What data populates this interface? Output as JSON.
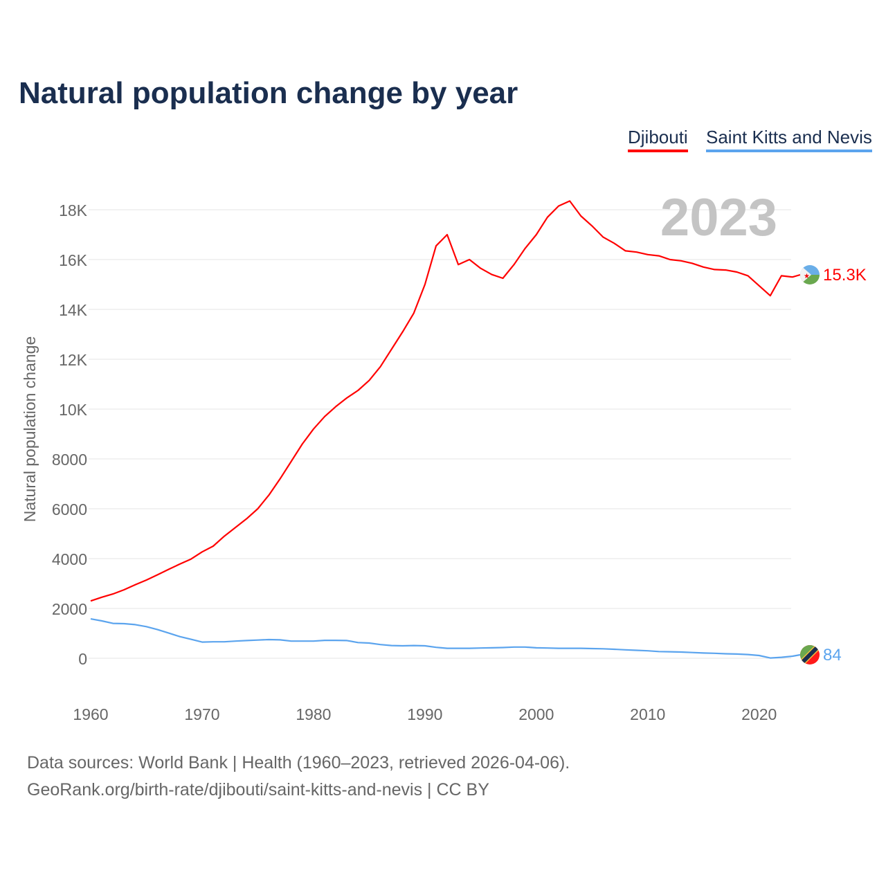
{
  "title": "Natural population change by year",
  "year_label": "2023",
  "footer": {
    "line1": "Data sources: World Bank | Health (1960–2023, retrieved 2026-04-06).",
    "line2": "GeoRank.org/birth-rate/djibouti/saint-kitts-and-nevis | CC BY"
  },
  "chart_data": {
    "type": "line",
    "title": "Natural population change by year",
    "xlabel": "",
    "ylabel": "Natural population change",
    "xlim": [
      1960,
      2023
    ],
    "ylim": [
      0,
      18000
    ],
    "x_ticks": [
      "1960",
      "1970",
      "1980",
      "1990",
      "2000",
      "2010",
      "2020"
    ],
    "y_ticks": [
      "0",
      "2000",
      "4000",
      "6000",
      "8000",
      "10K",
      "12K",
      "14K",
      "16K",
      "18K"
    ],
    "legend_position": "top-right",
    "grid": true,
    "x": [
      1960,
      1961,
      1962,
      1963,
      1964,
      1965,
      1966,
      1967,
      1968,
      1969,
      1970,
      1971,
      1972,
      1973,
      1974,
      1975,
      1976,
      1977,
      1978,
      1979,
      1980,
      1981,
      1982,
      1983,
      1984,
      1985,
      1986,
      1987,
      1988,
      1989,
      1990,
      1991,
      1992,
      1993,
      1994,
      1995,
      1996,
      1997,
      1998,
      1999,
      2000,
      2001,
      2002,
      2003,
      2004,
      2005,
      2006,
      2007,
      2008,
      2009,
      2010,
      2011,
      2012,
      2013,
      2014,
      2015,
      2016,
      2017,
      2018,
      2019,
      2020,
      2021,
      2022,
      2023
    ],
    "series": [
      {
        "name": "Djibouti",
        "color": "#ff0000",
        "end_label": "15.3K",
        "values": [
          2300,
          2450,
          2580,
          2750,
          2950,
          3140,
          3350,
          3570,
          3780,
          3980,
          4270,
          4500,
          4900,
          5250,
          5600,
          6000,
          6550,
          7200,
          7900,
          8600,
          9200,
          9700,
          10100,
          10450,
          10750,
          11150,
          11700,
          12400,
          13100,
          13850,
          15000,
          16550,
          17000,
          15800,
          16000,
          15650,
          15400,
          15250,
          15800,
          16450,
          17000,
          17700,
          18150,
          18350,
          17750,
          17350,
          16900,
          16650,
          16350,
          16300,
          16200,
          16150,
          16000,
          15950,
          15850,
          15700,
          15600,
          15580,
          15500,
          15350,
          14950,
          14550,
          15350,
          15300
        ]
      },
      {
        "name": "Saint Kitts and Nevis",
        "color": "#5ba4ee",
        "end_label": "84",
        "values": [
          1580,
          1500,
          1400,
          1390,
          1350,
          1270,
          1150,
          1010,
          870,
          760,
          650,
          660,
          660,
          690,
          710,
          730,
          750,
          740,
          690,
          690,
          690,
          720,
          720,
          710,
          630,
          610,
          550,
          510,
          500,
          510,
          500,
          440,
          400,
          400,
          400,
          410,
          420,
          430,
          450,
          450,
          420,
          410,
          400,
          400,
          400,
          390,
          380,
          360,
          340,
          320,
          300,
          270,
          260,
          250,
          230,
          210,
          200,
          180,
          170,
          150,
          110,
          10,
          40,
          84
        ]
      }
    ]
  }
}
